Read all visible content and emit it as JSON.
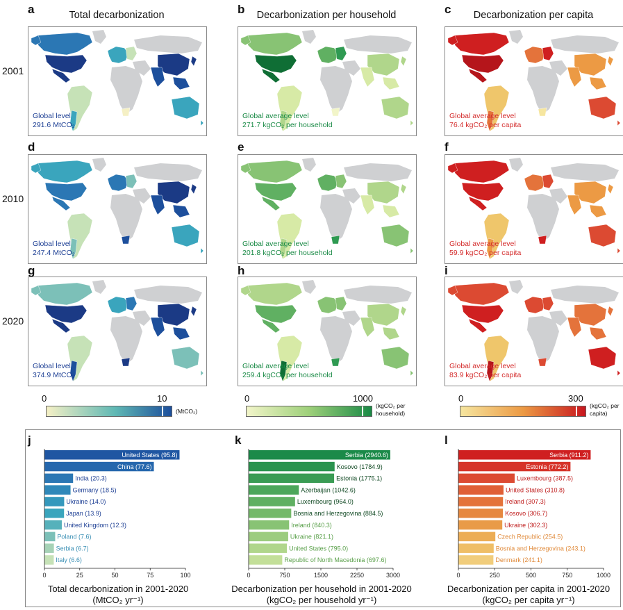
{
  "columns": [
    {
      "letter_top": "a",
      "title": "Total decarbonization"
    },
    {
      "letter_top": "b",
      "title": "Decarbonization per household"
    },
    {
      "letter_top": "c",
      "title": "Decarbonization per capita"
    }
  ],
  "years": [
    "2001",
    "2010",
    "2020"
  ],
  "map_letters": [
    [
      "a",
      "b",
      "c"
    ],
    [
      "d",
      "e",
      "f"
    ],
    [
      "g",
      "h",
      "i"
    ]
  ],
  "level_text": [
    [
      {
        "l1": "Global level",
        "l2": "291.6 MtCO₂"
      },
      {
        "l1": "Global average level",
        "l2": "271.7 kgCO₂ per household"
      },
      {
        "l1": "Global average level",
        "l2": "76.4 kgCO₂ per capita"
      }
    ],
    [
      {
        "l1": "Global level",
        "l2": "247.4 MtCO₂"
      },
      {
        "l1": "Global average level",
        "l2": "201.8 kgCO₂ per household"
      },
      {
        "l1": "Global average level",
        "l2": "59.9 kgCO₂ per capita"
      }
    ],
    [
      {
        "l1": "Global level",
        "l2": "374.9 MtCO₂"
      },
      {
        "l1": "Global average level",
        "l2": "259.4 kgCO₂ per household"
      },
      {
        "l1": "Global average level",
        "l2": "83.9 kgCO₂ per capita"
      }
    ]
  ],
  "colorbars": [
    {
      "min_label": "0",
      "max_label": "10",
      "unit": "(MtCO₂)",
      "colors": [
        "#f5f0c5",
        "#5fb8b4",
        "#1d4f9c"
      ]
    },
    {
      "min_label": "0",
      "max_label": "1000",
      "unit_l1": "(kgCO₂ per",
      "unit_l2": "household)",
      "colors": [
        "#f2f5c9",
        "#9ed07a",
        "#1a8a46"
      ]
    },
    {
      "min_label": "0",
      "max_label": "300",
      "unit_l1": "(kgCO₂ per",
      "unit_l2": "capita)",
      "colors": [
        "#f6e6a0",
        "#ec9a44",
        "#c8161e"
      ]
    }
  ],
  "colors": {
    "blue_text": "#1d3f94",
    "green_text": "#1a8a46",
    "red_text": "#d42d2d",
    "land_gray": "#cfd0d2"
  },
  "chart_data": [
    {
      "letter": "j",
      "type": "bar",
      "orientation": "horizontal",
      "categories": [
        "United States",
        "China",
        "India",
        "Germany",
        "Ukraine",
        "Japan",
        "United Kingdom",
        "Poland",
        "Serbia",
        "Italy"
      ],
      "values": [
        95.8,
        77.6,
        20.3,
        18.5,
        14.0,
        13.9,
        12.3,
        7.6,
        6.7,
        6.6
      ],
      "labels": [
        "United States (95.8)",
        "China (77.6)",
        "India (20.3)",
        "Germany (18.5)",
        "Ukraine (14.0)",
        "Japan (13.9)",
        "United Kingdom (12.3)",
        "Poland (7.6)",
        "Serbia (6.7)",
        "Italy (6.6)"
      ],
      "bar_colors": [
        "#1f56a2",
        "#2567ad",
        "#2b77b4",
        "#2f88b9",
        "#3498bc",
        "#3aa5bd",
        "#56b1bb",
        "#7cc0b8",
        "#a6d2b6",
        "#c6e2b7"
      ],
      "xlim": [
        0,
        100
      ],
      "xticks": [
        "0",
        "25",
        "50",
        "75",
        "100"
      ],
      "xlabel_l1": "Total decarbonization in 2001-2020",
      "xlabel_l2": "(MtCO₂ yr⁻¹)"
    },
    {
      "letter": "k",
      "type": "bar",
      "orientation": "horizontal",
      "categories": [
        "Serbia",
        "Kosovo",
        "Estonia",
        "Azerbaijan",
        "Luxembourg",
        "Bosnia and Herzegovina",
        "Ireland",
        "Ukraine",
        "United States",
        "Republic of North Macedonia"
      ],
      "values": [
        2940.6,
        1784.9,
        1775.1,
        1042.6,
        964.0,
        884.5,
        840.3,
        821.1,
        795.0,
        697.6
      ],
      "labels": [
        "Serbia (2940.6)",
        "Kosovo (1784.9)",
        "Estonia (1775.1)",
        "Azerbaijan (1042.6)",
        "Luxembourg (964.0)",
        "Bosnia and Herzegovina (884.5)",
        "Ireland (840.3)",
        "Ukraine (821.1)",
        "United States (795.0)",
        "Republic of North Macedonia (697.6)"
      ],
      "bar_colors": [
        "#1b8a49",
        "#2a934e",
        "#3a9c54",
        "#4da75b",
        "#60b062",
        "#74b96a",
        "#88c374",
        "#9ccc7f",
        "#b0d68b",
        "#c3df99"
      ],
      "xlim": [
        0,
        3000
      ],
      "xticks": [
        "0",
        "750",
        "1500",
        "2250",
        "3000"
      ],
      "xlabel_l1": "Decarbonization per household in 2001-2020",
      "xlabel_l2": "(kgCO₂ per household yr⁻¹)"
    },
    {
      "letter": "l",
      "type": "bar",
      "orientation": "horizontal",
      "categories": [
        "Serbia",
        "Estonia",
        "Luxembourg",
        "United States",
        "Ireland",
        "Kosovo",
        "Ukraine",
        "Czech Republic",
        "Bosnia and Herzegovina",
        "Denmark"
      ],
      "values": [
        911.2,
        772.2,
        387.5,
        310.8,
        307.3,
        306.7,
        302.3,
        254.5,
        243.1,
        241.1
      ],
      "labels": [
        "Serbia (911.2)",
        "Estonia (772.2)",
        "Luxembourg (387.5)",
        "United States (310.8)",
        "Ireland (307.3)",
        "Kosovo (306.7)",
        "Ukraine (302.3)",
        "Czech Republic (254.5)",
        "Bosnia and Herzegovina (243.1)",
        "Denmark (241.1)"
      ],
      "bar_colors": [
        "#cf1f20",
        "#d6342a",
        "#dc4a32",
        "#e05f36",
        "#e4733b",
        "#e68840",
        "#e99b48",
        "#ecad55",
        "#efbe66",
        "#f1cd7c"
      ],
      "xlim": [
        0,
        1000
      ],
      "xticks": [
        "0",
        "250",
        "500",
        "750",
        "1000"
      ],
      "xlabel_l1": "Decarbonization per capita in 2001-2020",
      "xlabel_l2": "(kgCO₂ per capita yr⁻¹)"
    }
  ]
}
